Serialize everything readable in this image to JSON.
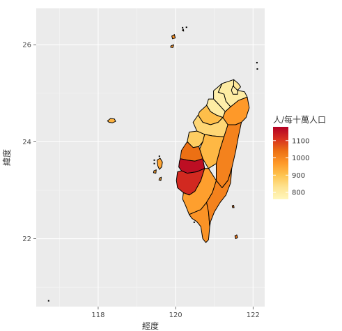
{
  "chart_data": {
    "type": "map",
    "xlabel": "經度",
    "ylabel": "緯度",
    "xlim": [
      116.4,
      122.3
    ],
    "ylim": [
      20.6,
      26.75
    ],
    "x_ticks": [
      118,
      120,
      122
    ],
    "y_ticks": [
      22,
      24,
      26
    ],
    "grid": true,
    "legend": {
      "title": "人/每十萬人口",
      "position": "right",
      "scale": "continuous",
      "range": [
        760,
        1180
      ],
      "breaks": [
        800,
        900,
        1000,
        1100
      ],
      "colors": [
        "#fff7bc",
        "#fee391",
        "#fec44f",
        "#fe9929",
        "#ec7014",
        "#d7301f",
        "#b30024"
      ]
    },
    "regions": [
      {
        "id": "keelung",
        "value": 820
      },
      {
        "id": "taipei-new",
        "value": 800
      },
      {
        "id": "taipei",
        "value": 790
      },
      {
        "id": "taoyuan",
        "value": 790
      },
      {
        "id": "hsinchu",
        "value": 800
      },
      {
        "id": "miaoli",
        "value": 910
      },
      {
        "id": "taichung",
        "value": 860
      },
      {
        "id": "changhua",
        "value": 880
      },
      {
        "id": "nantou",
        "value": 920
      },
      {
        "id": "yilan",
        "value": 970
      },
      {
        "id": "hualien",
        "value": 1010
      },
      {
        "id": "yunlin",
        "value": 1040
      },
      {
        "id": "chiayi",
        "value": 1160
      },
      {
        "id": "tainan",
        "value": 1120
      },
      {
        "id": "kaohsiung",
        "value": 960
      },
      {
        "id": "pingtung",
        "value": 980
      },
      {
        "id": "taitung",
        "value": 1010
      },
      {
        "id": "penghu",
        "value": 950
      },
      {
        "id": "kinmen",
        "value": 930
      },
      {
        "id": "lienchiang",
        "value": 980
      },
      {
        "id": "green-island",
        "value": 1030
      }
    ]
  }
}
